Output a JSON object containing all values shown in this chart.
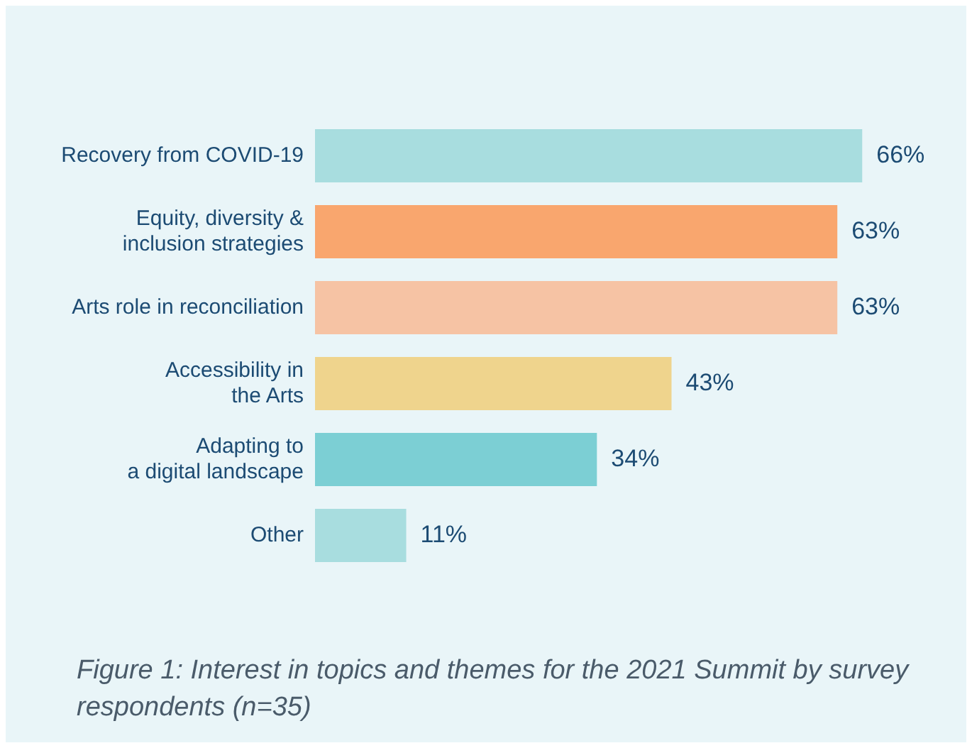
{
  "chart_data": {
    "type": "bar",
    "orientation": "horizontal",
    "categories": [
      "Recovery from COVID-19",
      "Equity, diversity &\ninclusion strategies",
      "Arts role in reconciliation",
      "Accessibility in\nthe Arts",
      "Adapting to\na digital landscape",
      "Other"
    ],
    "values": [
      66,
      63,
      63,
      43,
      34,
      11
    ],
    "colors": [
      "#a8dddf",
      "#f9a66e",
      "#f6c3a4",
      "#efd48d",
      "#7ccfd4",
      "#a8dddf"
    ],
    "value_labels": [
      "66%",
      "63%",
      "63%",
      "43%",
      "34%",
      "11%"
    ],
    "annotations": [
      "Figure 1: Interest in topics and themes for the 2021 Summit by survey respondents (n=35)"
    ],
    "legend": false,
    "grid": false
  }
}
